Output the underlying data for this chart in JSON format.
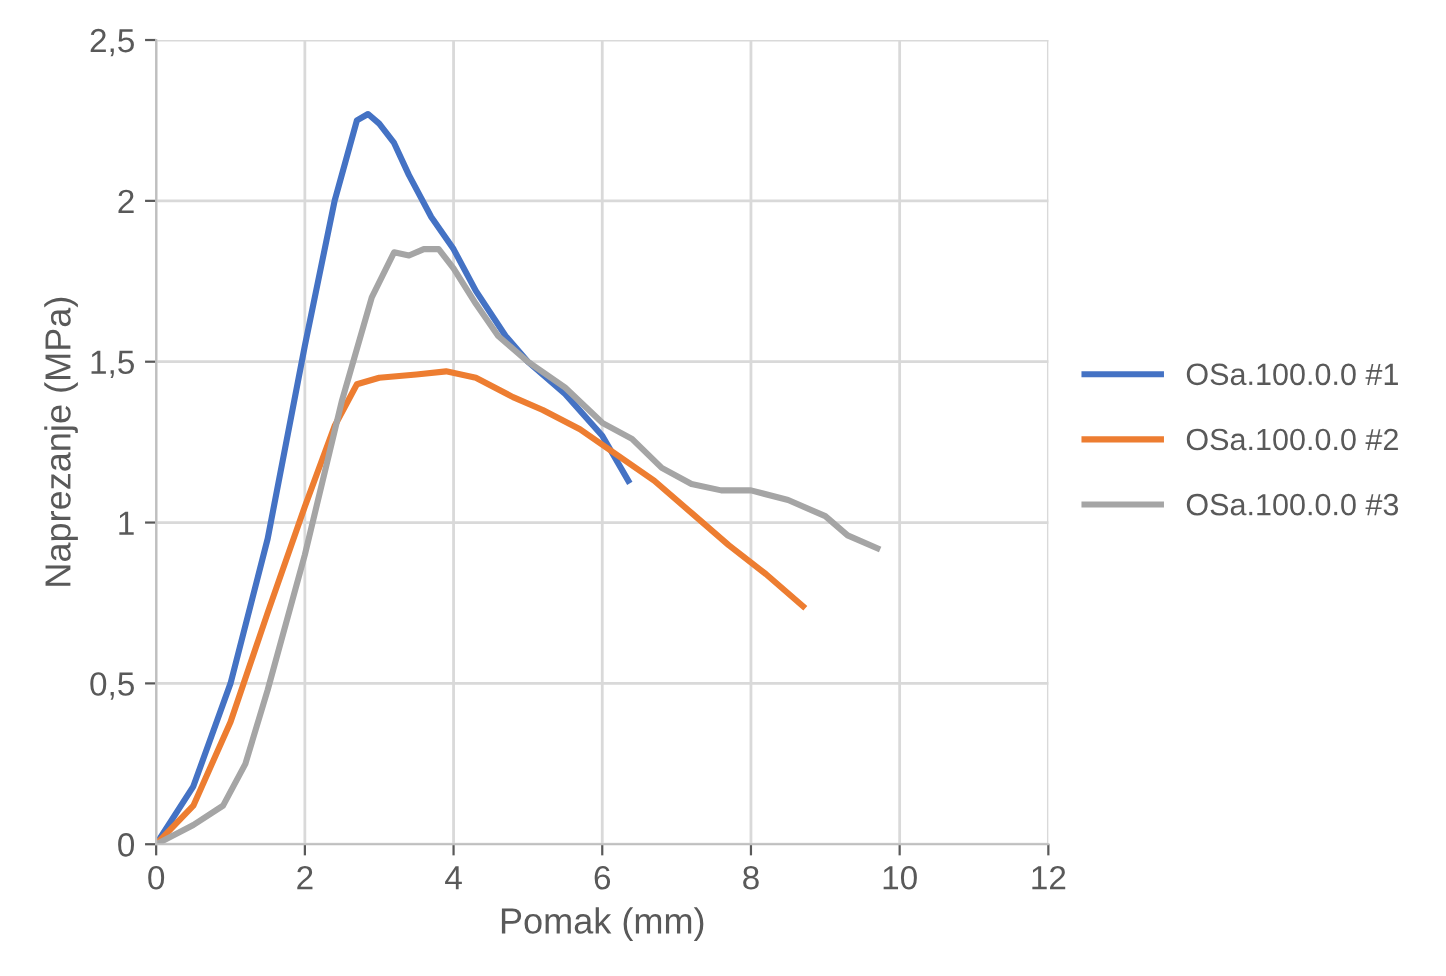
{
  "chart_data": {
    "type": "line",
    "xlabel": "Pomak (mm)",
    "ylabel": "Naprezanje (MPa)",
    "xlim": [
      0,
      12
    ],
    "xticks": [
      0,
      2,
      4,
      6,
      8,
      10,
      12
    ],
    "ylim": [
      0,
      2.5
    ],
    "yticks": [
      0,
      {
        "value": 0.5,
        "label": "0,5"
      },
      1,
      {
        "value": 1.5,
        "label": "1,5"
      },
      2,
      {
        "value": 2.5,
        "label": "2,5"
      }
    ],
    "grid": true,
    "legend": "right",
    "marker": "none",
    "line_style": "solid",
    "series": [
      {
        "name": "OSa.100.0.0 #1",
        "color": "#4472c4",
        "x": [
          0,
          0.5,
          1,
          1.5,
          2,
          2.4,
          2.7,
          2.85,
          3.0,
          3.2,
          3.4,
          3.7,
          4,
          4.3,
          4.7,
          5,
          5.5,
          6,
          6.35
        ],
        "values": [
          0,
          0.18,
          0.5,
          0.95,
          1.55,
          2.0,
          2.25,
          2.27,
          2.24,
          2.18,
          2.08,
          1.95,
          1.85,
          1.72,
          1.58,
          1.5,
          1.4,
          1.27,
          1.13
        ]
      },
      {
        "name": "OSa.100.0.0 #2",
        "color": "#ed7d31",
        "x": [
          0,
          0.5,
          1,
          1.5,
          2,
          2.4,
          2.7,
          3,
          3.5,
          3.9,
          4.3,
          4.8,
          5.2,
          5.7,
          6.2,
          6.7,
          7.2,
          7.7,
          8.2,
          8.7
        ],
        "values": [
          0,
          0.12,
          0.38,
          0.72,
          1.05,
          1.3,
          1.43,
          1.45,
          1.46,
          1.47,
          1.45,
          1.39,
          1.35,
          1.29,
          1.21,
          1.13,
          1.03,
          0.93,
          0.84,
          0.74
        ]
      },
      {
        "name": "OSa.100.0.0 #3",
        "color": "#a5a5a5",
        "x": [
          0,
          0.5,
          0.9,
          1.2,
          1.5,
          2,
          2.5,
          2.9,
          3.2,
          3.4,
          3.6,
          3.8,
          4,
          4.3,
          4.6,
          5,
          5.5,
          6,
          6.4,
          6.8,
          7.2,
          7.6,
          8,
          8.5,
          9,
          9.3,
          9.7
        ],
        "values": [
          0,
          0.06,
          0.12,
          0.25,
          0.48,
          0.9,
          1.38,
          1.7,
          1.84,
          1.83,
          1.85,
          1.85,
          1.79,
          1.68,
          1.58,
          1.5,
          1.42,
          1.31,
          1.26,
          1.17,
          1.12,
          1.1,
          1.1,
          1.07,
          1.02,
          0.96,
          0.92
        ]
      }
    ]
  }
}
